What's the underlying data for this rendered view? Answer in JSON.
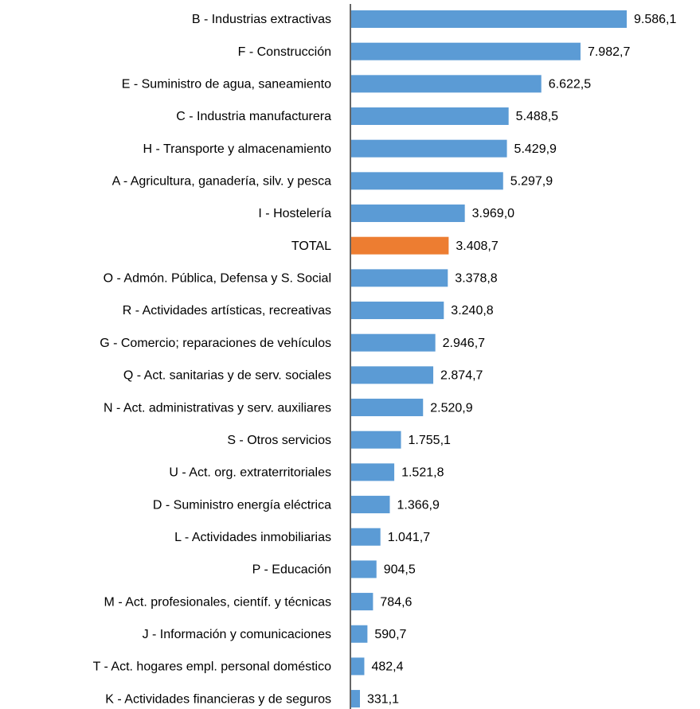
{
  "chart_data": {
    "type": "bar",
    "orientation": "horizontal",
    "categories": [
      "B - Industrias extractivas",
      "F - Construcción",
      "E - Suministro de agua, saneamiento",
      "C - Industria manufacturera",
      "H - Transporte y almacenamiento",
      "A - Agricultura, ganadería, silv. y pesca",
      "I - Hostelería",
      "TOTAL",
      "O - Admón. Pública, Defensa y S. Social",
      "R - Actividades artísticas, recreativas",
      "G - Comercio; reparaciones de vehículos",
      "Q - Act. sanitarias y de serv. sociales",
      "N - Act. administrativas y serv. auxiliares",
      "S - Otros servicios",
      "U - Act. org. extraterritoriales",
      "D - Suministro energía eléctrica",
      "L - Actividades inmobiliarias",
      "P - Educación",
      "M - Act. profesionales, científ. y técnicas",
      "J - Información y comunicaciones",
      "T - Act. hogares empl. personal doméstico",
      "K - Actividades financieras y de seguros"
    ],
    "values": [
      9586.1,
      7982.7,
      6622.5,
      5488.5,
      5429.9,
      5297.9,
      3969.0,
      3408.7,
      3378.8,
      3240.8,
      2946.7,
      2874.7,
      2520.9,
      1755.1,
      1521.8,
      1366.9,
      1041.7,
      904.5,
      784.6,
      590.7,
      482.4,
      331.1
    ],
    "value_labels": [
      "9.586,1",
      "7.982,7",
      "6.622,5",
      "5.488,5",
      "5.429,9",
      "5.297,9",
      "3.969,0",
      "3.408,7",
      "3.378,8",
      "3.240,8",
      "2.946,7",
      "2.874,7",
      "2.520,9",
      "1.755,1",
      "1.521,8",
      "1.366,9",
      "1.041,7",
      "904,5",
      "784,6",
      "590,7",
      "482,4",
      "331,1"
    ],
    "colors": [
      "#5b9bd5",
      "#5b9bd5",
      "#5b9bd5",
      "#5b9bd5",
      "#5b9bd5",
      "#5b9bd5",
      "#5b9bd5",
      "#ed7d31",
      "#5b9bd5",
      "#5b9bd5",
      "#5b9bd5",
      "#5b9bd5",
      "#5b9bd5",
      "#5b9bd5",
      "#5b9bd5",
      "#5b9bd5",
      "#5b9bd5",
      "#5b9bd5",
      "#5b9bd5",
      "#5b9bd5",
      "#5b9bd5",
      "#5b9bd5"
    ]
  }
}
